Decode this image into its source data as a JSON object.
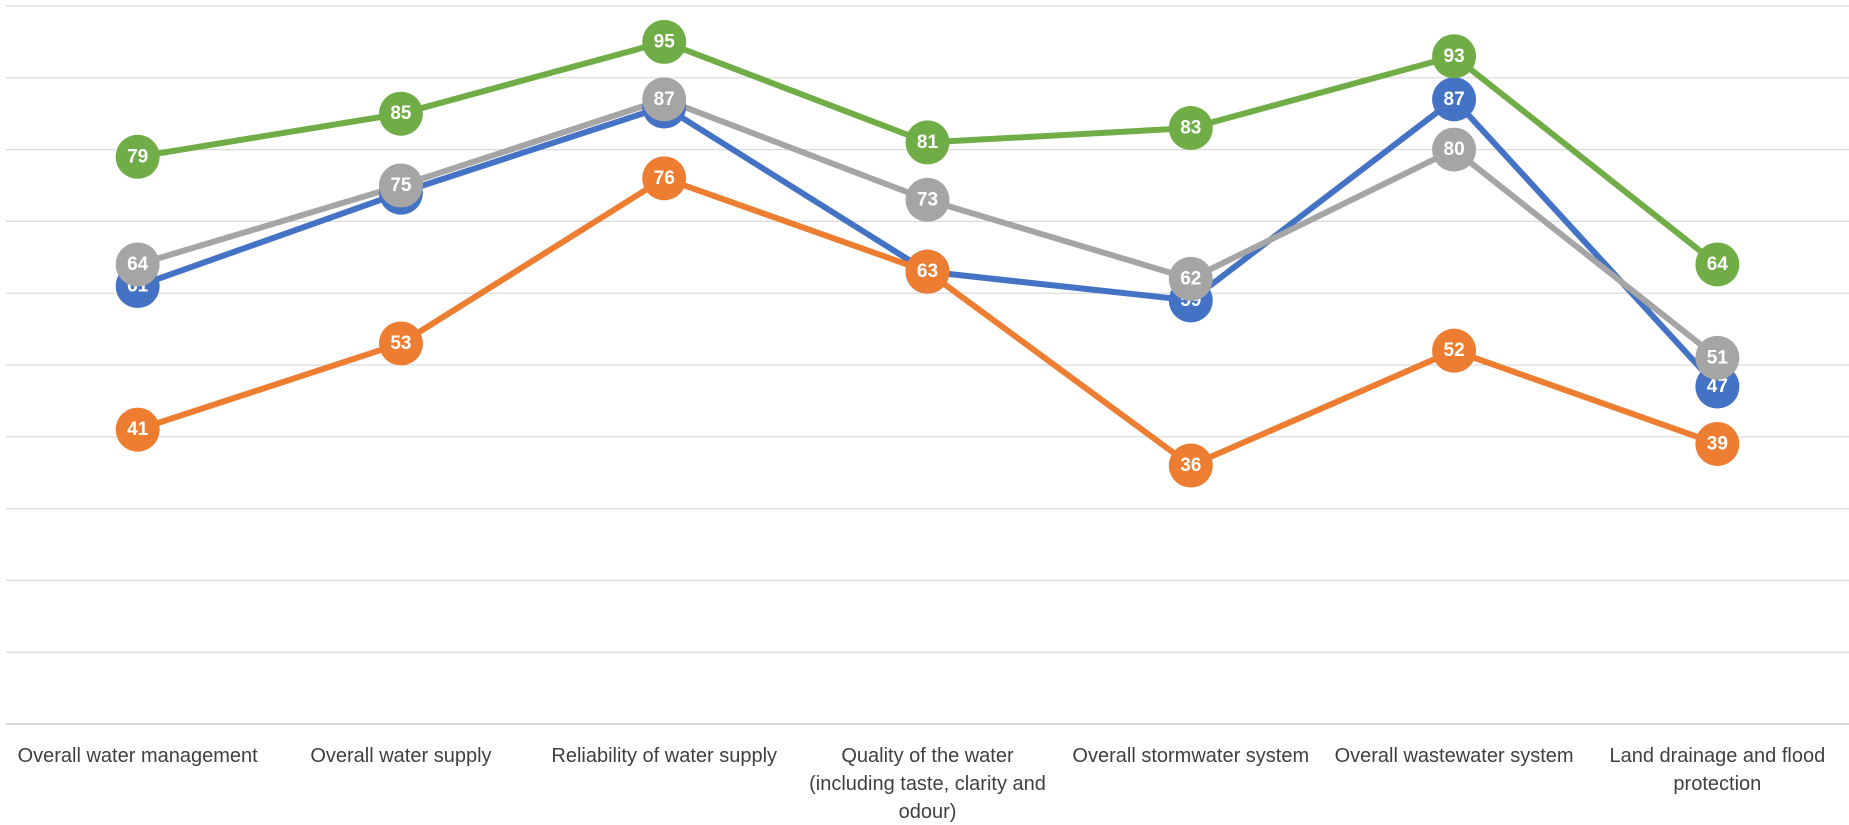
{
  "chart_data": {
    "type": "line",
    "categories": [
      "Overall water management",
      "Overall water supply",
      "Reliability of water supply",
      "Quality of the water (including taste, clarity and odour)",
      "Overall stormwater system",
      "Overall wastewater system",
      "Land drainage and flood protection"
    ],
    "series": [
      {
        "color": "#4472c4",
        "values": [
          61,
          74,
          86,
          63,
          59,
          87,
          47
        ]
      },
      {
        "color": "#a5a5a5",
        "values": [
          64,
          75,
          87,
          73,
          62,
          80,
          51
        ]
      },
      {
        "color": "#ed7d31",
        "values": [
          41,
          53,
          76,
          63,
          36,
          52,
          39
        ]
      },
      {
        "color": "#70ad47",
        "values": [
          79,
          85,
          95,
          81,
          83,
          93,
          64
        ]
      }
    ],
    "ylim": [
      0,
      100
    ],
    "yticks": [
      0,
      10,
      20,
      30,
      40,
      50,
      60,
      70,
      80,
      90,
      100
    ],
    "grid": true,
    "ytick_labels": false,
    "data_labels": true
  }
}
